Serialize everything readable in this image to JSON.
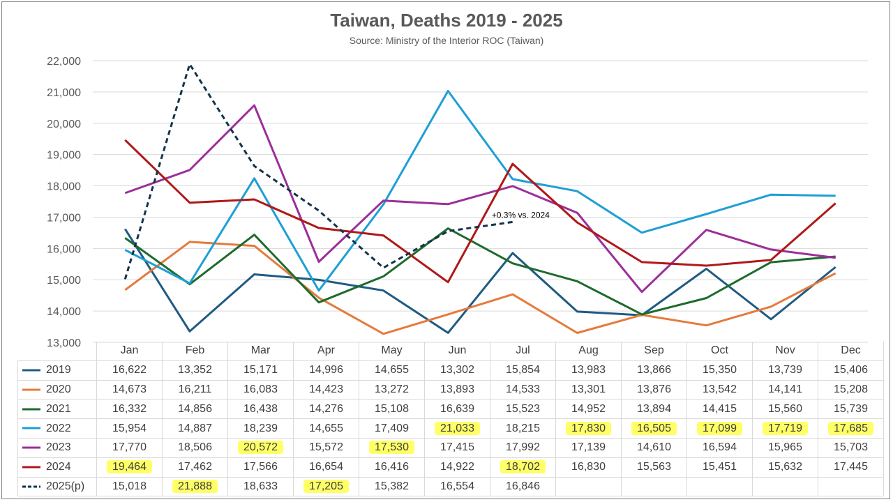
{
  "title": "Taiwan, Deaths 2019 - 2025",
  "subtitle": "Source: Ministry of the Interior ROC (Taiwan)",
  "chart_data": {
    "type": "line",
    "categories": [
      "Jan",
      "Feb",
      "Mar",
      "Apr",
      "May",
      "Jun",
      "Jul",
      "Aug",
      "Sep",
      "Oct",
      "Nov",
      "Dec"
    ],
    "ylim": [
      13000,
      22000
    ],
    "yticks": [
      13000,
      14000,
      15000,
      16000,
      17000,
      18000,
      19000,
      20000,
      21000,
      22000
    ],
    "ytick_labels": [
      "13,000",
      "14,000",
      "15,000",
      "16,000",
      "17,000",
      "18,000",
      "19,000",
      "20,000",
      "21,000",
      "22,000"
    ],
    "grid": true,
    "legend": "data-table",
    "series": [
      {
        "name": "2019",
        "color": "#1f5b82",
        "dashed": false,
        "values": [
          16622,
          13352,
          15171,
          14996,
          14655,
          13302,
          15854,
          13983,
          13866,
          15350,
          13739,
          15406
        ],
        "display": [
          "16,622",
          "13,352",
          "15,171",
          "14,996",
          "14,655",
          "13,302",
          "15,854",
          "13,983",
          "13,866",
          "15,350",
          "13,739",
          "15,406"
        ]
      },
      {
        "name": "2020",
        "color": "#e57a3c",
        "dashed": false,
        "values": [
          14673,
          16211,
          16083,
          14423,
          13272,
          13893,
          14533,
          13301,
          13876,
          13542,
          14141,
          15208
        ],
        "display": [
          "14,673",
          "16,211",
          "16,083",
          "14,423",
          "13,272",
          "13,893",
          "14,533",
          "13,301",
          "13,876",
          "13,542",
          "14,141",
          "15,208"
        ]
      },
      {
        "name": "2021",
        "color": "#1e6b2d",
        "dashed": false,
        "values": [
          16332,
          14856,
          16438,
          14276,
          15108,
          16639,
          15523,
          14952,
          13894,
          14415,
          15560,
          15739
        ],
        "display": [
          "16,332",
          "14,856",
          "16,438",
          "14,276",
          "15,108",
          "16,639",
          "15,523",
          "14,952",
          "13,894",
          "14,415",
          "15,560",
          "15,739"
        ]
      },
      {
        "name": "2022",
        "color": "#1e9fd6",
        "dashed": false,
        "values": [
          15954,
          14887,
          18239,
          14655,
          17409,
          21033,
          18215,
          17830,
          16505,
          17099,
          17719,
          17685
        ],
        "display": [
          "15,954",
          "14,887",
          "18,239",
          "14,655",
          "17,409",
          "21,033",
          "18,215",
          "17,830",
          "16,505",
          "17,099",
          "17,719",
          "17,685"
        ]
      },
      {
        "name": "2023",
        "color": "#9b2f9a",
        "dashed": false,
        "values": [
          17770,
          18506,
          20572,
          15572,
          17530,
          17415,
          17992,
          17139,
          14610,
          16594,
          15965,
          15703
        ],
        "display": [
          "17,770",
          "18,506",
          "20,572",
          "15,572",
          "17,530",
          "17,415",
          "17,992",
          "17,139",
          "14,610",
          "16,594",
          "15,965",
          "15,703"
        ]
      },
      {
        "name": "2024",
        "color": "#b01818",
        "dashed": false,
        "values": [
          19464,
          17462,
          17566,
          16654,
          16416,
          14922,
          18702,
          16830,
          15563,
          15451,
          15632,
          17445
        ],
        "display": [
          "19,464",
          "17,462",
          "17,566",
          "16,654",
          "16,416",
          "14,922",
          "18,702",
          "16,830",
          "15,563",
          "15,451",
          "15,632",
          "17,445"
        ]
      },
      {
        "name": "2025(p)",
        "color": "#12344a",
        "dashed": true,
        "values": [
          15018,
          21888,
          18633,
          17205,
          15382,
          16554,
          16846,
          null,
          null,
          null,
          null,
          null
        ],
        "display": [
          "15,018",
          "21,888",
          "18,633",
          "17,205",
          "15,382",
          "16,554",
          "16,846",
          "",
          "",
          "",
          "",
          ""
        ]
      }
    ],
    "highlights": {
      "2022": [
        5,
        7,
        8,
        9,
        10,
        11
      ],
      "2023": [
        2,
        4
      ],
      "2024": [
        0,
        6
      ],
      "2025(p)": [
        1,
        3
      ]
    },
    "annotations": [
      {
        "text": "+0.3% vs. 2024",
        "series": "2025(p)",
        "category": "Jul"
      }
    ]
  }
}
